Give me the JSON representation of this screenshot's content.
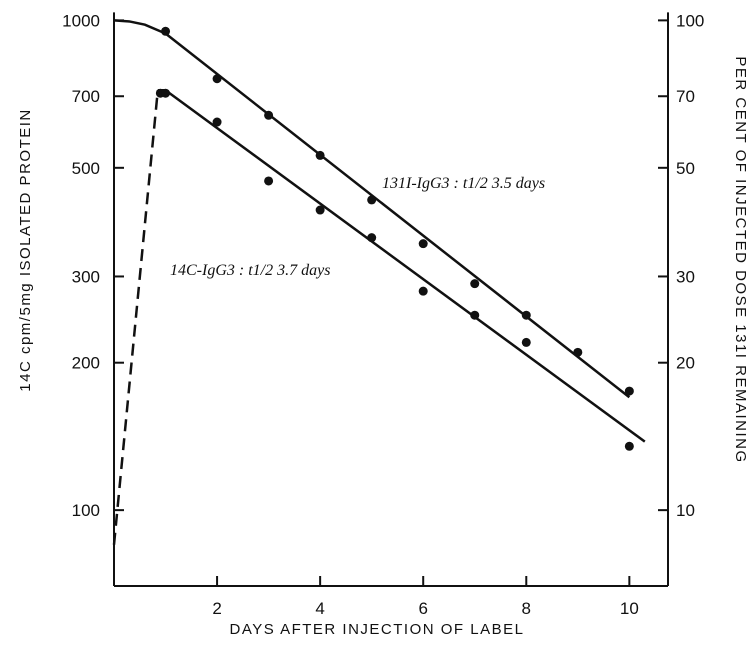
{
  "chart_data": {
    "type": "line",
    "xlabel": "DAYS AFTER INJECTION OF LABEL",
    "ylabel_left": "14C cpm/5mg ISOLATED PROTEIN",
    "ylabel_right": "PER CENT OF INJECTED DOSE 131I REMAINING",
    "x_ticks": [
      2,
      4,
      6,
      8,
      10
    ],
    "y_left_ticks": [
      100,
      200,
      300,
      500,
      700,
      1000
    ],
    "y_right_ticks": [
      10,
      20,
      30,
      50,
      70,
      100
    ],
    "xlim": [
      0,
      10.75
    ],
    "ylim_left": [
      70,
      1050
    ],
    "ylim_right": [
      7,
      105
    ],
    "y_scale": "log",
    "series": [
      {
        "name": "131I-IgG3 : t1/2 3.5 days",
        "axis": "right",
        "points": [
          [
            1,
            95
          ],
          [
            2,
            76
          ],
          [
            3,
            64
          ],
          [
            4,
            53
          ],
          [
            5,
            43
          ],
          [
            6,
            35
          ],
          [
            7,
            29
          ],
          [
            8,
            25
          ],
          [
            9,
            21
          ],
          [
            10,
            17.5
          ]
        ],
        "fit_line": [
          [
            1,
            94
          ],
          [
            10,
            17
          ]
        ],
        "initial_curve": [
          [
            0,
            100
          ],
          [
            0.3,
            99.5
          ],
          [
            0.6,
            98
          ],
          [
            1,
            94
          ]
        ]
      },
      {
        "name": "14C-IgG3 : t1/2 3.7 days",
        "axis": "left",
        "points": [
          [
            0.9,
            710
          ],
          [
            1,
            710
          ],
          [
            2,
            620
          ],
          [
            3,
            470
          ],
          [
            4,
            410
          ],
          [
            5,
            360
          ],
          [
            6,
            280
          ],
          [
            7,
            250
          ],
          [
            8,
            220
          ],
          [
            10,
            135
          ]
        ],
        "fit_line": [
          [
            1,
            720
          ],
          [
            10.3,
            138
          ]
        ],
        "rise_dashed": [
          [
            0,
            85
          ],
          [
            0.85,
            720
          ]
        ]
      }
    ],
    "annotations": [
      {
        "text": "131I-IgG3 : t1/2 3.5 days",
        "series": 0
      },
      {
        "text": "14C-IgG3 : t1/2 3.7 days",
        "series": 1
      }
    ]
  }
}
